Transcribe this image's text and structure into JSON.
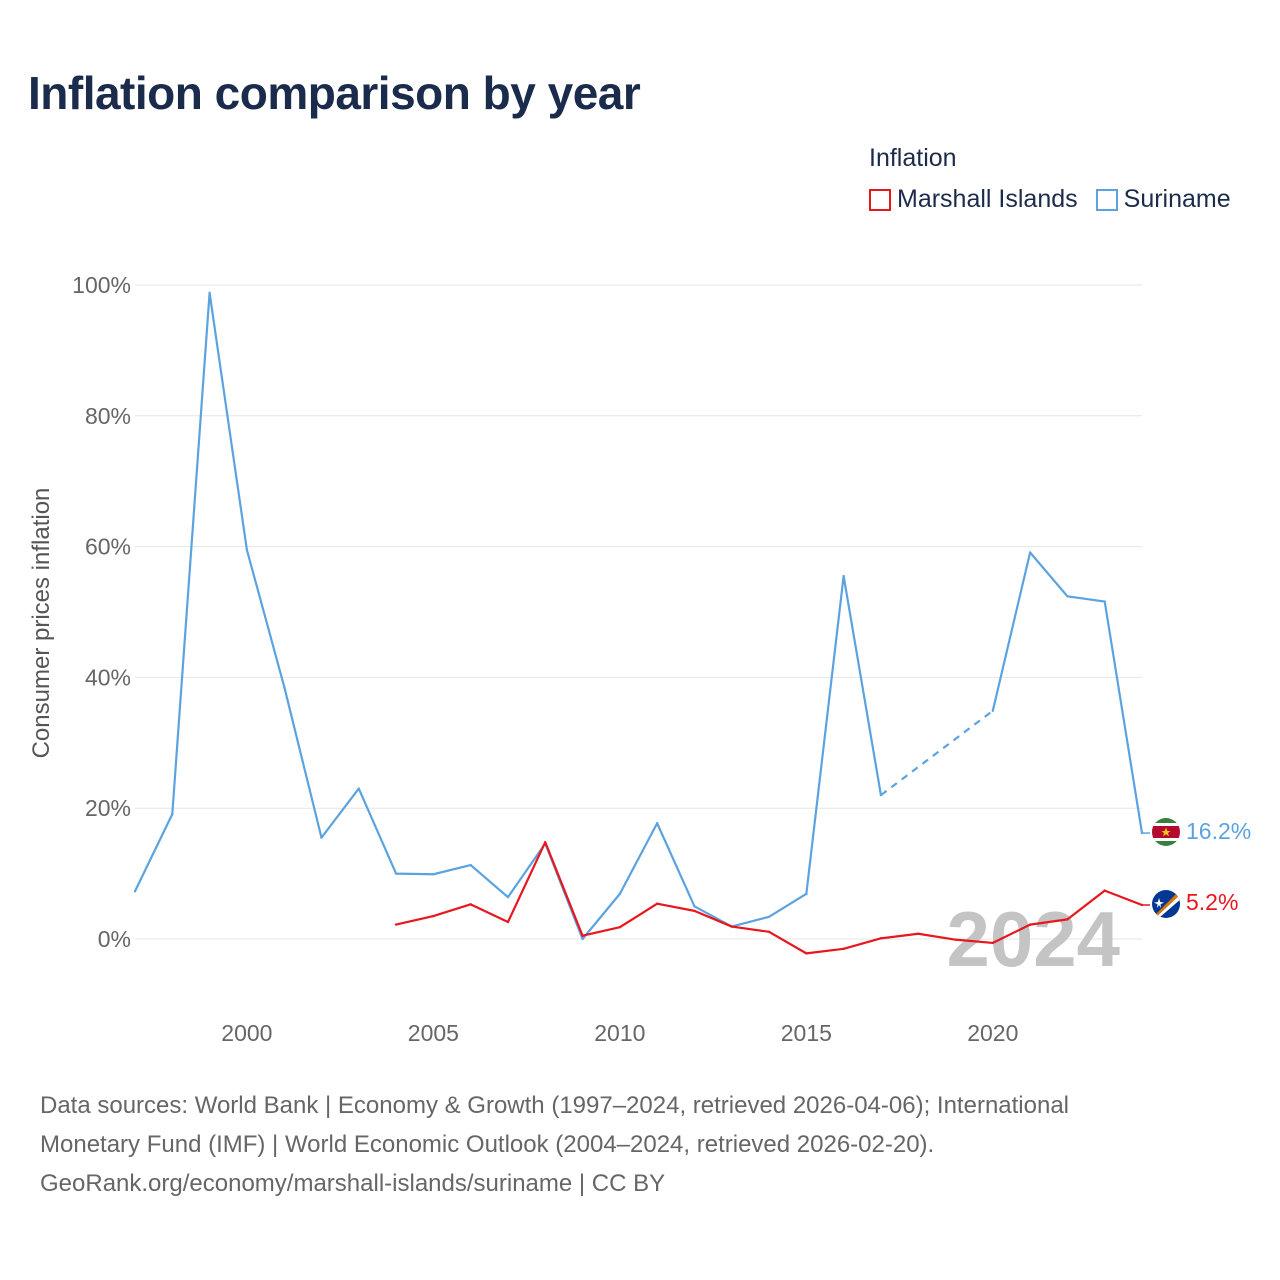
{
  "title": "Inflation comparison by year",
  "legend": {
    "title": "Inflation",
    "items": [
      {
        "name": "Marshall Islands",
        "color": "#e8171d"
      },
      {
        "name": "Suriname",
        "color": "#5ba3e0"
      }
    ]
  },
  "year_watermark": "2024",
  "end_labels": {
    "suriname": "16.2%",
    "marshall": "5.2%"
  },
  "source": {
    "line1": "Data sources: World Bank | Economy & Growth (1997–2024, retrieved 2026-04-06); International",
    "line2": "Monetary Fund (IMF) | World Economic Outlook (2004–2024, retrieved 2026-02-20).",
    "line3": "GeoRank.org/economy/marshall-islands/suriname | CC BY"
  },
  "chart_data": {
    "type": "line",
    "title": "Inflation comparison by year",
    "xlabel": "",
    "ylabel": "Consumer prices inflation",
    "xlim": [
      1997,
      2024
    ],
    "ylim": [
      -10,
      100
    ],
    "y_ticks": [
      0,
      20,
      40,
      60,
      80,
      100
    ],
    "y_tick_labels": [
      "0%",
      "20%",
      "40%",
      "60%",
      "80%",
      "100%"
    ],
    "x_ticks": [
      2000,
      2005,
      2010,
      2015,
      2020
    ],
    "x_tick_labels": [
      "2000",
      "2005",
      "2010",
      "2015",
      "2020"
    ],
    "grid": true,
    "series": [
      {
        "name": "Suriname",
        "color": "#5ba3e0",
        "x": [
          1997,
          1998,
          1999,
          2000,
          2001,
          2002,
          2003,
          2004,
          2005,
          2006,
          2007,
          2008,
          2009,
          2010,
          2011,
          2012,
          2013,
          2014,
          2015,
          2016,
          2017,
          2018,
          2019,
          2020,
          2021,
          2022,
          2023,
          2024
        ],
        "values": [
          7.3,
          19.1,
          98.8,
          59.5,
          38.6,
          15.5,
          23.0,
          10.0,
          9.9,
          11.3,
          6.4,
          14.6,
          0.0,
          6.9,
          17.7,
          5.0,
          1.9,
          3.4,
          6.9,
          55.5,
          22.0,
          null,
          null,
          34.9,
          59.1,
          52.4,
          51.6,
          16.2
        ],
        "dashed_segments": [
          [
            2017,
            2020
          ]
        ],
        "end_label": "16.2%"
      },
      {
        "name": "Marshall Islands",
        "color": "#e8171d",
        "x": [
          2004,
          2005,
          2006,
          2007,
          2008,
          2009,
          2010,
          2011,
          2012,
          2013,
          2014,
          2015,
          2016,
          2017,
          2018,
          2019,
          2020,
          2021,
          2022,
          2023,
          2024
        ],
        "values": [
          2.2,
          3.5,
          5.3,
          2.6,
          14.8,
          0.5,
          1.8,
          5.4,
          4.3,
          1.9,
          1.1,
          -2.2,
          -1.5,
          0.1,
          0.8,
          -0.1,
          -0.6,
          2.2,
          3.0,
          7.4,
          5.2
        ],
        "end_label": "5.2%"
      }
    ]
  }
}
